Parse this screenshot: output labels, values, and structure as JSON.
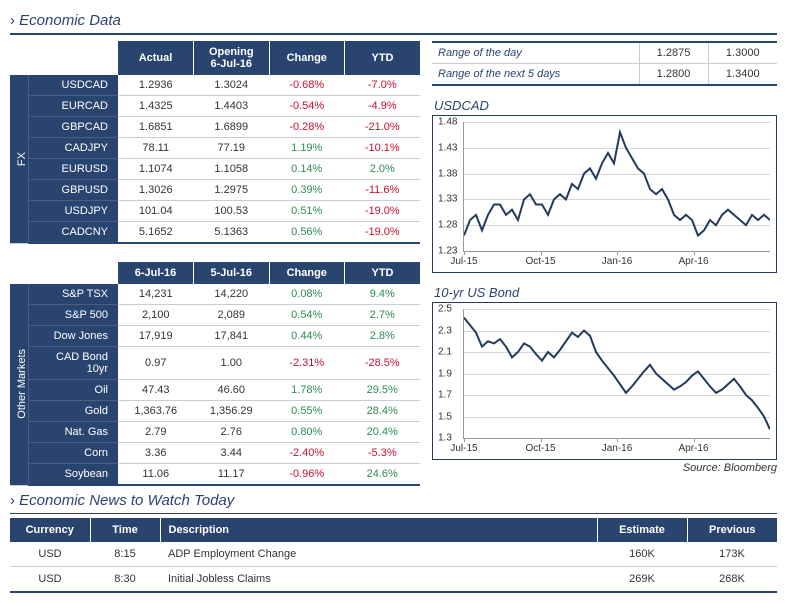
{
  "colors": {
    "brand": "#2a4470",
    "neg": "#c8102e",
    "pos": "#2e8b57",
    "rule": "#c7cdd6"
  },
  "section_economic_data": "Economic Data",
  "section_news": "Economic News to Watch Today",
  "source_label": "Source: Bloomberg",
  "fx": {
    "caption": "FX",
    "headers": [
      "Actual",
      "Opening\n6-Jul-16",
      "Change",
      "YTD"
    ],
    "rows": [
      {
        "label": "USDCAD",
        "c": [
          "1.2936",
          "1.3024",
          "-0.68%",
          "-7.0%"
        ],
        "sign": [
          0,
          0,
          -1,
          -1
        ]
      },
      {
        "label": "EURCAD",
        "c": [
          "1.4325",
          "1.4403",
          "-0.54%",
          "-4.9%"
        ],
        "sign": [
          0,
          0,
          -1,
          -1
        ]
      },
      {
        "label": "GBPCAD",
        "c": [
          "1.6851",
          "1.6899",
          "-0.28%",
          "-21.0%"
        ],
        "sign": [
          0,
          0,
          -1,
          -1
        ]
      },
      {
        "label": "CADJPY",
        "c": [
          "78.11",
          "77.19",
          "1.19%",
          "-10.1%"
        ],
        "sign": [
          0,
          0,
          1,
          -1
        ]
      },
      {
        "label": "EURUSD",
        "c": [
          "1.1074",
          "1.1058",
          "0.14%",
          "2.0%"
        ],
        "sign": [
          0,
          0,
          1,
          1
        ]
      },
      {
        "label": "GBPUSD",
        "c": [
          "1.3026",
          "1.2975",
          "0.39%",
          "-11.6%"
        ],
        "sign": [
          0,
          0,
          1,
          -1
        ]
      },
      {
        "label": "USDJPY",
        "c": [
          "101.04",
          "100.53",
          "0.51%",
          "-19.0%"
        ],
        "sign": [
          0,
          0,
          1,
          -1
        ]
      },
      {
        "label": "CADCNY",
        "c": [
          "5.1652",
          "5.1363",
          "0.56%",
          "-19.0%"
        ],
        "sign": [
          0,
          0,
          1,
          -1
        ]
      }
    ]
  },
  "other": {
    "caption": "Other Markets",
    "headers": [
      "6-Jul-16",
      "5-Jul-16",
      "Change",
      "YTD"
    ],
    "rows": [
      {
        "label": "S&P TSX",
        "c": [
          "14,231",
          "14,220",
          "0.08%",
          "9.4%"
        ],
        "sign": [
          0,
          0,
          1,
          1
        ]
      },
      {
        "label": "S&P 500",
        "c": [
          "2,100",
          "2,089",
          "0.54%",
          "2.7%"
        ],
        "sign": [
          0,
          0,
          1,
          1
        ]
      },
      {
        "label": "Dow Jones",
        "c": [
          "17,919",
          "17,841",
          "0.44%",
          "2.8%"
        ],
        "sign": [
          0,
          0,
          1,
          1
        ]
      },
      {
        "label": "CAD Bond 10yr",
        "c": [
          "0.97",
          "1.00",
          "-2.31%",
          "-28.5%"
        ],
        "sign": [
          0,
          0,
          -1,
          -1
        ]
      },
      {
        "label": "Oil",
        "c": [
          "47.43",
          "46.60",
          "1.78%",
          "29.5%"
        ],
        "sign": [
          0,
          0,
          1,
          1
        ]
      },
      {
        "label": "Gold",
        "c": [
          "1,363.76",
          "1,356.29",
          "0.55%",
          "28.4%"
        ],
        "sign": [
          0,
          0,
          1,
          1
        ]
      },
      {
        "label": "Nat. Gas",
        "c": [
          "2.79",
          "2.76",
          "0.80%",
          "20.4%"
        ],
        "sign": [
          0,
          0,
          1,
          1
        ]
      },
      {
        "label": "Corn",
        "c": [
          "3.36",
          "3.44",
          "-2.40%",
          "-5.3%"
        ],
        "sign": [
          0,
          0,
          -1,
          -1
        ]
      },
      {
        "label": "Soybean",
        "c": [
          "11.06",
          "11.17",
          "-0.96%",
          "24.6%"
        ],
        "sign": [
          0,
          0,
          -1,
          1
        ]
      }
    ]
  },
  "ranges": [
    {
      "label": "Range of the day",
      "lo": "1.2875",
      "hi": "1.3000"
    },
    {
      "label": "Range of the next 5 days",
      "lo": "1.2800",
      "hi": "1.3400"
    }
  ],
  "chart1": {
    "title": "USDCAD",
    "type": "line",
    "ylim": [
      1.23,
      1.48
    ],
    "yticks": [
      1.23,
      1.28,
      1.33,
      1.38,
      1.43,
      1.48
    ],
    "xticks": [
      "Jul-15",
      "Oct-15",
      "Jan-16",
      "Apr-16"
    ],
    "xtick_pos": [
      0,
      25,
      50,
      75
    ],
    "line_color": "#233a5e",
    "series": [
      1.26,
      1.29,
      1.3,
      1.27,
      1.3,
      1.32,
      1.32,
      1.3,
      1.31,
      1.29,
      1.33,
      1.34,
      1.32,
      1.32,
      1.3,
      1.33,
      1.34,
      1.33,
      1.36,
      1.35,
      1.38,
      1.39,
      1.37,
      1.4,
      1.42,
      1.4,
      1.46,
      1.43,
      1.41,
      1.39,
      1.38,
      1.35,
      1.34,
      1.35,
      1.33,
      1.3,
      1.29,
      1.3,
      1.29,
      1.26,
      1.27,
      1.29,
      1.28,
      1.3,
      1.31,
      1.3,
      1.29,
      1.28,
      1.3,
      1.29,
      1.3,
      1.29
    ]
  },
  "chart2": {
    "title": "10-yr US Bond",
    "type": "line",
    "ylim": [
      1.3,
      2.5
    ],
    "yticks": [
      1.3,
      1.5,
      1.7,
      1.9,
      2.1,
      2.3,
      2.5
    ],
    "xticks": [
      "Jul-15",
      "Oct-15",
      "Jan-16",
      "Apr-16"
    ],
    "xtick_pos": [
      0,
      25,
      50,
      75
    ],
    "line_color": "#233a5e",
    "series": [
      2.42,
      2.35,
      2.28,
      2.15,
      2.2,
      2.18,
      2.22,
      2.15,
      2.05,
      2.1,
      2.18,
      2.15,
      2.08,
      2.02,
      2.1,
      2.05,
      2.12,
      2.2,
      2.28,
      2.24,
      2.3,
      2.25,
      2.1,
      2.02,
      1.95,
      1.88,
      1.8,
      1.72,
      1.78,
      1.85,
      1.92,
      1.98,
      1.9,
      1.85,
      1.8,
      1.75,
      1.78,
      1.82,
      1.88,
      1.92,
      1.85,
      1.78,
      1.72,
      1.75,
      1.8,
      1.85,
      1.78,
      1.7,
      1.65,
      1.58,
      1.5,
      1.38
    ]
  },
  "news": {
    "headers": [
      "Currency",
      "Time",
      "Description",
      "Estimate",
      "Previous"
    ],
    "rows": [
      {
        "currency": "USD",
        "time": "8:15",
        "desc": "ADP Employment Change",
        "est": "160K",
        "prev": "173K"
      },
      {
        "currency": "USD",
        "time": "8:30",
        "desc": "Initial Jobless Claims",
        "est": "269K",
        "prev": "268K"
      }
    ]
  }
}
